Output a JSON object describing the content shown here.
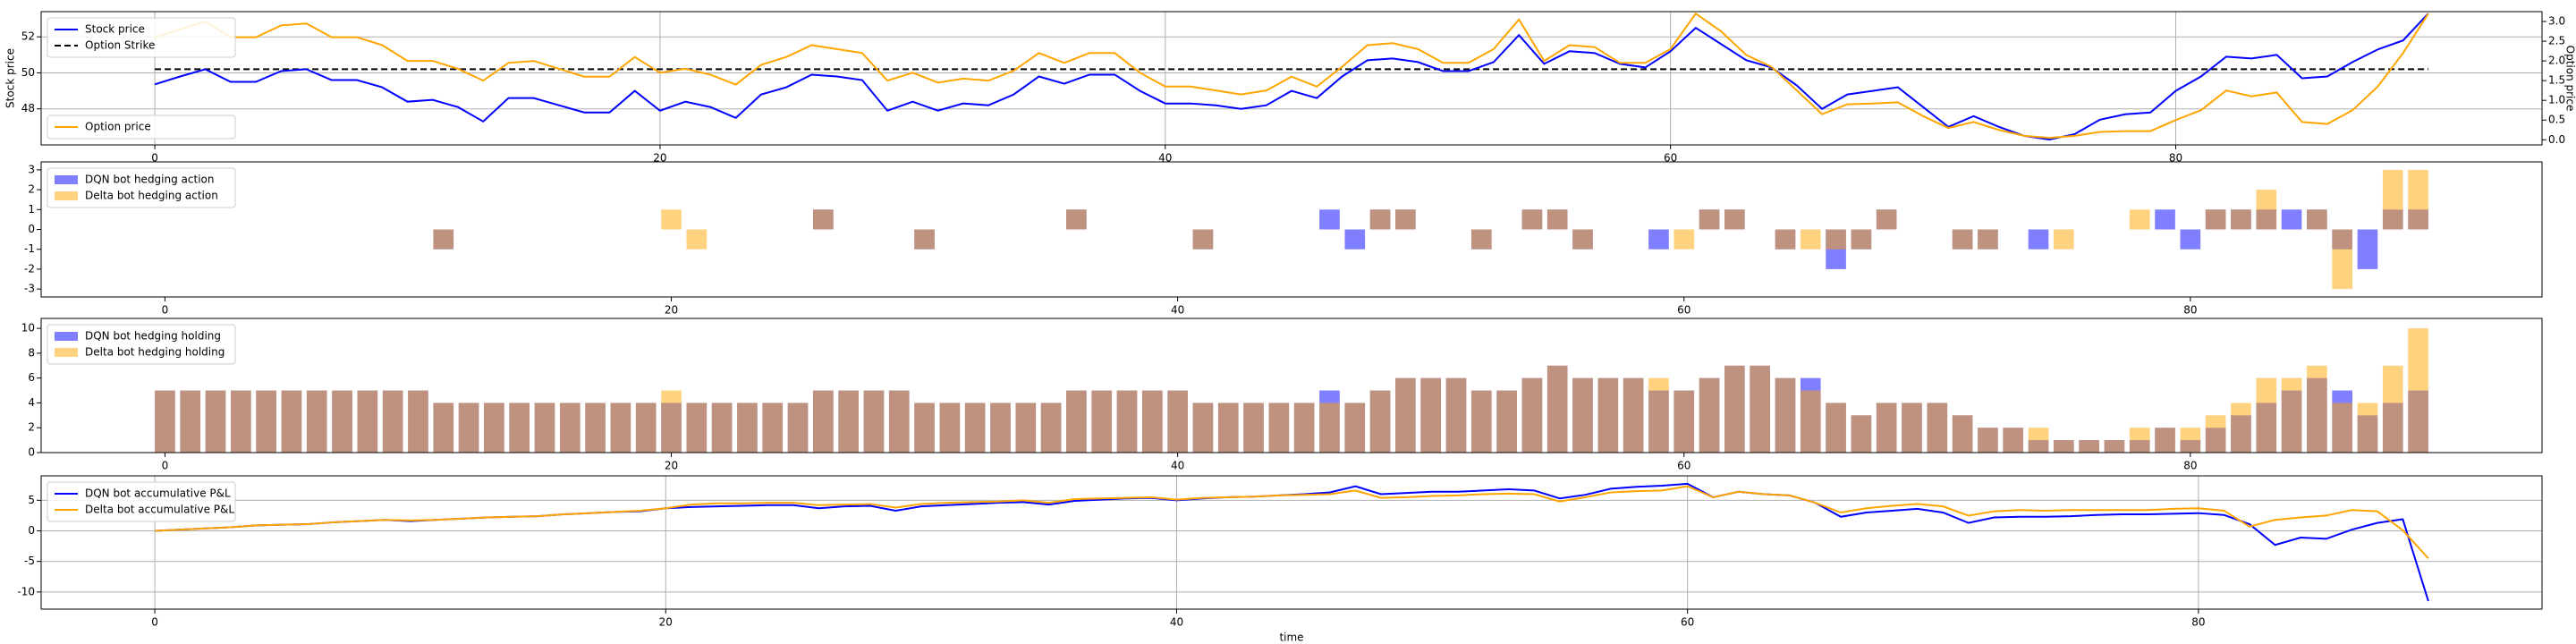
{
  "chart_data": [
    {
      "type": "line",
      "ylabel": "Stock price",
      "y2label": "Option price",
      "grid": true,
      "legend": "upper left",
      "legend2": "lower left",
      "xlim": [
        -4.5,
        94.5
      ],
      "xticks": [
        0,
        20,
        40,
        60,
        80
      ],
      "ylim": [
        46.0,
        53.4
      ],
      "yticks": [
        48,
        50,
        52
      ],
      "y2lim": [
        -0.13,
        3.25
      ],
      "y2ticks": [
        {
          "value": 0,
          "label": "0.0"
        },
        0.5,
        {
          "value": 1,
          "label": "1.0"
        },
        1.5,
        {
          "value": 2,
          "label": "2.0"
        },
        2.5,
        {
          "value": 3,
          "label": "3.0"
        }
      ],
      "x": [
        0,
        1,
        2,
        3,
        4,
        5,
        6,
        7,
        8,
        9,
        10,
        11,
        12,
        13,
        14,
        15,
        16,
        17,
        18,
        19,
        20,
        21,
        22,
        23,
        24,
        25,
        26,
        27,
        28,
        29,
        30,
        31,
        32,
        33,
        34,
        35,
        36,
        37,
        38,
        39,
        40,
        41,
        42,
        43,
        44,
        45,
        46,
        47,
        48,
        49,
        50,
        51,
        52,
        53,
        54,
        55,
        56,
        57,
        58,
        59,
        60,
        61,
        62,
        63,
        64,
        65,
        66,
        67,
        68,
        69,
        70,
        71,
        72,
        73,
        74,
        75,
        76,
        77,
        78,
        79,
        80,
        81,
        82,
        83,
        84,
        85,
        86,
        87,
        88,
        89,
        90
      ],
      "series": [
        {
          "name": "Stock price",
          "color": "#0000ff",
          "values": [
            49.36,
            49.8,
            50.2,
            49.5,
            49.5,
            50.1,
            50.2,
            49.6,
            49.6,
            49.2,
            48.4,
            48.5,
            48.1,
            47.3,
            48.6,
            48.6,
            48.2,
            47.8,
            47.8,
            49.0,
            47.9,
            48.4,
            48.1,
            47.5,
            48.8,
            49.2,
            49.9,
            49.8,
            49.6,
            47.9,
            48.4,
            47.9,
            48.3,
            48.2,
            48.8,
            49.8,
            49.4,
            49.9,
            49.9,
            49.0,
            48.3,
            48.3,
            48.2,
            48.0,
            48.2,
            49.0,
            48.6,
            49.8,
            50.7,
            50.8,
            50.6,
            50.1,
            50.1,
            50.6,
            52.1,
            50.5,
            51.2,
            51.1,
            50.5,
            50.3,
            51.2,
            52.5,
            51.6,
            50.7,
            50.3,
            49.3,
            48.0,
            48.8,
            49.0,
            49.2,
            48.1,
            47.0,
            47.6,
            47.0,
            46.5,
            46.3,
            46.6,
            47.4,
            47.7,
            47.8,
            49.0,
            49.8,
            50.9,
            50.8,
            51.0,
            49.7,
            49.8,
            50.6,
            51.3,
            51.8,
            53.3
          ]
        },
        {
          "name": "Option price",
          "color": "#ffa500",
          "axis": "y2",
          "values": [
            2.6,
            2.8,
            3.0,
            2.6,
            2.6,
            2.9,
            2.95,
            2.6,
            2.6,
            2.4,
            2.0,
            2.0,
            1.8,
            1.5,
            1.95,
            2.0,
            1.8,
            1.6,
            1.6,
            2.1,
            1.7,
            1.8,
            1.65,
            1.4,
            1.9,
            2.1,
            2.4,
            2.3,
            2.2,
            1.5,
            1.7,
            1.45,
            1.55,
            1.5,
            1.75,
            2.2,
            1.95,
            2.2,
            2.2,
            1.7,
            1.35,
            1.35,
            1.25,
            1.15,
            1.25,
            1.6,
            1.35,
            1.85,
            2.4,
            2.45,
            2.3,
            1.95,
            1.95,
            2.3,
            3.05,
            2.0,
            2.4,
            2.35,
            1.95,
            1.95,
            2.3,
            3.2,
            2.75,
            2.15,
            1.85,
            1.25,
            0.65,
            0.9,
            0.92,
            0.95,
            0.6,
            0.3,
            0.45,
            0.25,
            0.1,
            0.05,
            0.1,
            0.2,
            0.22,
            0.22,
            0.5,
            0.75,
            1.25,
            1.1,
            1.2,
            0.45,
            0.4,
            0.75,
            1.35,
            2.2,
            3.2
          ]
        }
      ],
      "reference_line": {
        "name": "Option Strike",
        "value": 50.2,
        "color": "#000000"
      }
    },
    {
      "type": "bar",
      "grid": false,
      "legend": "upper left",
      "xlim": [
        -4.89,
        93.89
      ],
      "xticks": [
        0,
        20,
        40,
        60,
        80
      ],
      "ylim": [
        -3.4,
        3.4
      ],
      "yticks": [
        -3,
        -2,
        -1,
        0,
        1,
        2,
        3
      ],
      "x": [
        0,
        1,
        2,
        3,
        4,
        5,
        6,
        7,
        8,
        9,
        10,
        11,
        12,
        13,
        14,
        15,
        16,
        17,
        18,
        19,
        20,
        21,
        22,
        23,
        24,
        25,
        26,
        27,
        28,
        29,
        30,
        31,
        32,
        33,
        34,
        35,
        36,
        37,
        38,
        39,
        40,
        41,
        42,
        43,
        44,
        45,
        46,
        47,
        48,
        49,
        50,
        51,
        52,
        53,
        54,
        55,
        56,
        57,
        58,
        59,
        60,
        61,
        62,
        63,
        64,
        65,
        66,
        67,
        68,
        69,
        70,
        71,
        72,
        73,
        74,
        75,
        76,
        77,
        78,
        79,
        80,
        81,
        82,
        83,
        84,
        85,
        86,
        87,
        88,
        89
      ],
      "series": [
        {
          "name": "DQN bot hedging action",
          "color": "#0000ff",
          "values": [
            0,
            0,
            0,
            0,
            0,
            0,
            0,
            0,
            0,
            0,
            0,
            -1,
            0,
            0,
            0,
            0,
            0,
            0,
            0,
            0,
            0,
            0,
            0,
            0,
            0,
            0,
            1,
            0,
            0,
            0,
            -1,
            0,
            0,
            0,
            0,
            0,
            1,
            0,
            0,
            0,
            0,
            -1,
            0,
            0,
            0,
            0,
            1,
            -1,
            1,
            1,
            0,
            0,
            -1,
            0,
            1,
            1,
            -1,
            0,
            0,
            -1,
            0,
            1,
            1,
            0,
            -1,
            0,
            -2,
            -1,
            1,
            0,
            0,
            -1,
            -1,
            0,
            -1,
            0,
            0,
            0,
            0,
            1,
            -1,
            1,
            1,
            1,
            1,
            1,
            -1,
            -2,
            1,
            1
          ]
        },
        {
          "name": "Delta bot hedging action",
          "color": "#ffa500",
          "values": [
            0,
            0,
            0,
            0,
            0,
            0,
            0,
            0,
            0,
            0,
            0,
            -1,
            0,
            0,
            0,
            0,
            0,
            0,
            0,
            0,
            1,
            -1,
            0,
            0,
            0,
            0,
            1,
            0,
            0,
            0,
            -1,
            0,
            0,
            0,
            0,
            0,
            1,
            0,
            0,
            0,
            0,
            -1,
            0,
            0,
            0,
            0,
            0,
            0,
            1,
            1,
            0,
            0,
            -1,
            0,
            1,
            1,
            -1,
            0,
            0,
            0,
            -1,
            1,
            1,
            0,
            -1,
            -1,
            -1,
            -1,
            1,
            0,
            0,
            -1,
            -1,
            0,
            0,
            -1,
            0,
            0,
            1,
            0,
            0,
            1,
            1,
            2,
            0,
            1,
            -3,
            0,
            3,
            3
          ]
        }
      ]
    },
    {
      "type": "bar",
      "grid": false,
      "legend": "upper left",
      "xlim": [
        -4.89,
        93.89
      ],
      "xticks": [
        0,
        20,
        40,
        60,
        80
      ],
      "ylim": [
        0,
        10.8
      ],
      "yticks": [
        0,
        2,
        4,
        6,
        8,
        10
      ],
      "x": [
        0,
        1,
        2,
        3,
        4,
        5,
        6,
        7,
        8,
        9,
        10,
        11,
        12,
        13,
        14,
        15,
        16,
        17,
        18,
        19,
        20,
        21,
        22,
        23,
        24,
        25,
        26,
        27,
        28,
        29,
        30,
        31,
        32,
        33,
        34,
        35,
        36,
        37,
        38,
        39,
        40,
        41,
        42,
        43,
        44,
        45,
        46,
        47,
        48,
        49,
        50,
        51,
        52,
        53,
        54,
        55,
        56,
        57,
        58,
        59,
        60,
        61,
        62,
        63,
        64,
        65,
        66,
        67,
        68,
        69,
        70,
        71,
        72,
        73,
        74,
        75,
        76,
        77,
        78,
        79,
        80,
        81,
        82,
        83,
        84,
        85,
        86,
        87,
        88,
        89
      ],
      "series": [
        {
          "name": "DQN bot hedging holding",
          "color": "#0000ff",
          "values": [
            5,
            5,
            5,
            5,
            5,
            5,
            5,
            5,
            5,
            5,
            5,
            4,
            4,
            4,
            4,
            4,
            4,
            4,
            4,
            4,
            4,
            4,
            4,
            4,
            4,
            4,
            5,
            5,
            5,
            5,
            4,
            4,
            4,
            4,
            4,
            4,
            5,
            5,
            5,
            5,
            5,
            4,
            4,
            4,
            4,
            4,
            5,
            4,
            5,
            6,
            6,
            6,
            5,
            5,
            6,
            7,
            6,
            6,
            6,
            5,
            5,
            6,
            7,
            7,
            6,
            6,
            4,
            3,
            4,
            4,
            4,
            3,
            2,
            2,
            1,
            1,
            1,
            1,
            1,
            2,
            1,
            2,
            3,
            4,
            5,
            6,
            5,
            3,
            4,
            5
          ]
        },
        {
          "name": "Delta bot hedging holding",
          "color": "#ffa500",
          "values": [
            5,
            5,
            5,
            5,
            5,
            5,
            5,
            5,
            5,
            5,
            5,
            4,
            4,
            4,
            4,
            4,
            4,
            4,
            4,
            4,
            5,
            4,
            4,
            4,
            4,
            4,
            5,
            5,
            5,
            5,
            4,
            4,
            4,
            4,
            4,
            4,
            5,
            5,
            5,
            5,
            5,
            4,
            4,
            4,
            4,
            4,
            4,
            4,
            5,
            6,
            6,
            6,
            5,
            5,
            6,
            7,
            6,
            6,
            6,
            6,
            5,
            6,
            7,
            7,
            6,
            5,
            4,
            3,
            4,
            4,
            4,
            3,
            2,
            2,
            2,
            1,
            1,
            1,
            2,
            2,
            2,
            3,
            4,
            6,
            6,
            7,
            4,
            4,
            7,
            10
          ]
        }
      ]
    },
    {
      "type": "line",
      "xlabel": "time",
      "grid": true,
      "legend": "upper left",
      "xlim": [
        -4.45,
        93.45
      ],
      "xticks": [
        0,
        20,
        40,
        60,
        80
      ],
      "ylim": [
        -12.8,
        9.0
      ],
      "yticks": [
        -10,
        -5,
        0,
        5
      ],
      "x": [
        0,
        1,
        2,
        3,
        4,
        5,
        6,
        7,
        8,
        9,
        10,
        11,
        12,
        13,
        14,
        15,
        16,
        17,
        18,
        19,
        20,
        21,
        22,
        23,
        24,
        25,
        26,
        27,
        28,
        29,
        30,
        31,
        32,
        33,
        34,
        35,
        36,
        37,
        38,
        39,
        40,
        41,
        42,
        43,
        44,
        45,
        46,
        47,
        48,
        49,
        50,
        51,
        52,
        53,
        54,
        55,
        56,
        57,
        58,
        59,
        60,
        61,
        62,
        63,
        64,
        65,
        66,
        67,
        68,
        69,
        70,
        71,
        72,
        73,
        74,
        75,
        76,
        77,
        78,
        79,
        80,
        81,
        82,
        83,
        84,
        85,
        86,
        87,
        88,
        89
      ],
      "series": [
        {
          "name": "DQN bot accumulative P&L",
          "color": "#0000ff",
          "values": [
            0,
            0.2,
            0.4,
            0.6,
            0.9,
            1.0,
            1.1,
            1.4,
            1.6,
            1.8,
            1.6,
            1.8,
            2.0,
            2.2,
            2.3,
            2.4,
            2.7,
            2.9,
            3.1,
            3.2,
            3.7,
            3.9,
            4.0,
            4.1,
            4.2,
            4.2,
            3.7,
            4.0,
            4.1,
            3.3,
            4.0,
            4.2,
            4.4,
            4.6,
            4.7,
            4.3,
            4.9,
            5.1,
            5.3,
            5.4,
            5.0,
            5.3,
            5.5,
            5.6,
            5.8,
            6.0,
            6.3,
            7.3,
            6.0,
            6.2,
            6.4,
            6.4,
            6.6,
            6.8,
            6.6,
            5.3,
            5.9,
            6.9,
            7.2,
            7.4,
            7.7,
            5.5,
            6.4,
            6.0,
            5.8,
            4.6,
            2.3,
            3.0,
            3.3,
            3.6,
            3.0,
            1.3,
            2.2,
            2.3,
            2.3,
            2.4,
            2.6,
            2.7,
            2.7,
            2.8,
            2.9,
            2.6,
            1.1,
            -2.3,
            -1.1,
            -1.3,
            0.2,
            1.3,
            1.9,
            -11.5
          ]
        },
        {
          "name": "Delta bot accumulative P&L",
          "color": "#ffa500",
          "values": [
            0,
            0.2,
            0.4,
            0.6,
            0.9,
            1.0,
            1.1,
            1.4,
            1.6,
            1.8,
            1.7,
            1.8,
            2.0,
            2.2,
            2.3,
            2.4,
            2.7,
            2.9,
            3.1,
            3.3,
            3.7,
            4.3,
            4.5,
            4.5,
            4.6,
            4.6,
            4.2,
            4.3,
            4.4,
            3.8,
            4.4,
            4.6,
            4.7,
            4.8,
            5.0,
            4.6,
            5.2,
            5.3,
            5.4,
            5.5,
            5.1,
            5.4,
            5.5,
            5.6,
            5.8,
            5.9,
            6.0,
            6.6,
            5.4,
            5.5,
            5.7,
            5.8,
            6.0,
            6.1,
            6.0,
            4.8,
            5.5,
            6.3,
            6.5,
            6.6,
            7.3,
            5.5,
            6.4,
            6.0,
            5.8,
            4.6,
            3.0,
            3.7,
            4.1,
            4.4,
            4.0,
            2.5,
            3.2,
            3.4,
            3.3,
            3.4,
            3.4,
            3.4,
            3.4,
            3.6,
            3.7,
            3.3,
            0.7,
            1.8,
            2.2,
            2.5,
            3.4,
            3.2,
            0.1,
            -4.5
          ]
        }
      ]
    }
  ]
}
